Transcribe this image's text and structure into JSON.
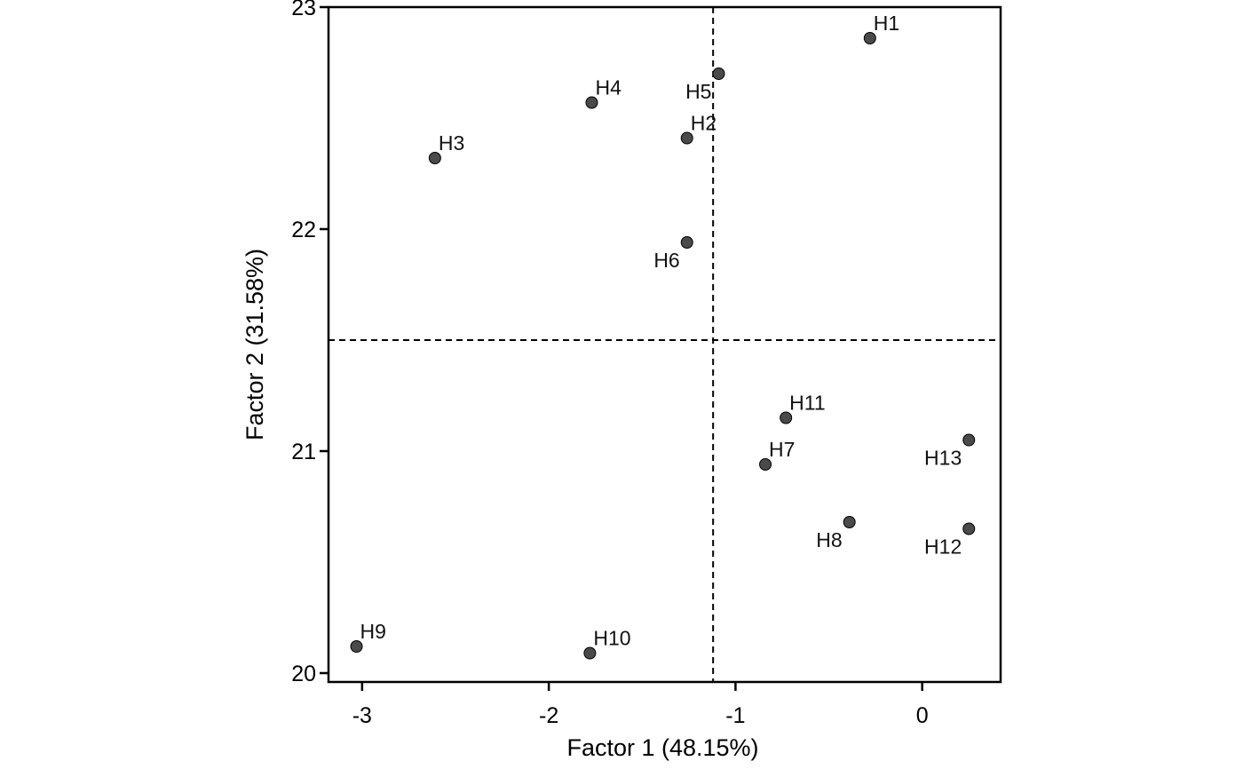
{
  "chart_data": {
    "type": "scatter",
    "xlabel": "Factor 1 (48.15%)",
    "ylabel": "Factor 2 (31.58%)",
    "xlim": [
      -3.18,
      0.42
    ],
    "ylim": [
      19.96,
      23.0
    ],
    "xticks": [
      -3,
      -2,
      -1,
      0
    ],
    "yticks": [
      20,
      21,
      22,
      23
    ],
    "xtick_labels": [
      "-3",
      "-2",
      "-1",
      "0"
    ],
    "ytick_labels": [
      "20",
      "21",
      "22",
      "23"
    ],
    "grid": false,
    "reference_lines": {
      "x": -1.12,
      "y": 21.5
    },
    "marker_color": "#4a4a4a",
    "points": [
      {
        "label": "H1",
        "x": -0.28,
        "y": 22.86,
        "label_pos": "above-right"
      },
      {
        "label": "H2",
        "x": -1.26,
        "y": 22.41,
        "label_pos": "above-right"
      },
      {
        "label": "H3",
        "x": -2.61,
        "y": 22.32,
        "label_pos": "above-right"
      },
      {
        "label": "H4",
        "x": -1.77,
        "y": 22.57,
        "label_pos": "above-right"
      },
      {
        "label": "H5",
        "x": -1.09,
        "y": 22.7,
        "label_pos": "below-left"
      },
      {
        "label": "H6",
        "x": -1.26,
        "y": 21.94,
        "label_pos": "below-left"
      },
      {
        "label": "H7",
        "x": -0.84,
        "y": 20.94,
        "label_pos": "above-right"
      },
      {
        "label": "H8",
        "x": -0.39,
        "y": 20.68,
        "label_pos": "below-left"
      },
      {
        "label": "H9",
        "x": -3.03,
        "y": 20.12,
        "label_pos": "above-right"
      },
      {
        "label": "H10",
        "x": -1.78,
        "y": 20.09,
        "label_pos": "above-right"
      },
      {
        "label": "H11",
        "x": -0.73,
        "y": 21.15,
        "label_pos": "above-right"
      },
      {
        "label": "H12",
        "x": 0.25,
        "y": 20.65,
        "label_pos": "below-left"
      },
      {
        "label": "H13",
        "x": 0.25,
        "y": 21.05,
        "label_pos": "below-left"
      }
    ]
  }
}
